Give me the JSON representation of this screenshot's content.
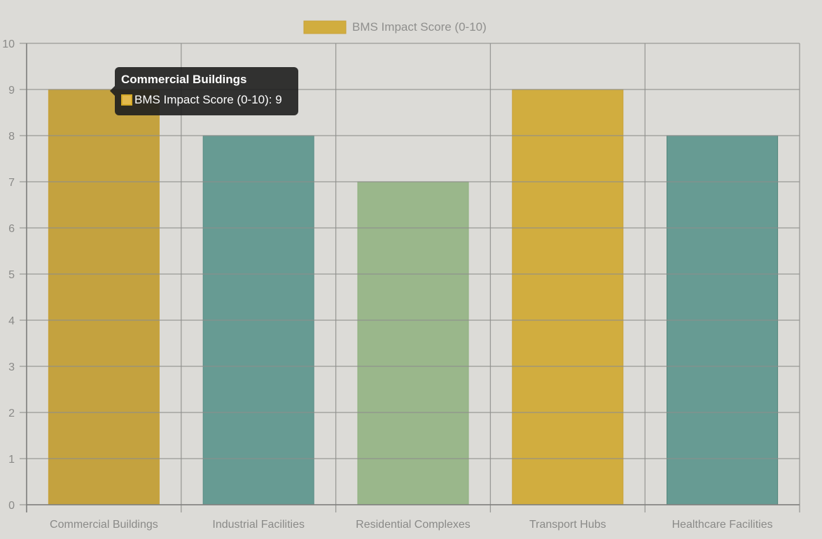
{
  "chart_data": {
    "type": "bar",
    "title": "",
    "xlabel": "",
    "ylabel": "",
    "categories": [
      "Commercial Buildings",
      "Industrial Facilities",
      "Residential Complexes",
      "Transport Hubs",
      "Healthcare Facilities"
    ],
    "series": [
      {
        "name": "BMS Impact Score (0-10)",
        "values": [
          9,
          8,
          7,
          9,
          8
        ],
        "colors": [
          "#c4a23f",
          "#679b93",
          "#9ab78b",
          "#d1ad3f",
          "#679b93"
        ],
        "border_colors": [
          "#c9a23a",
          "#5a8d85",
          "#8fb07e",
          "#c9a23a",
          "#4f8479"
        ]
      }
    ],
    "ylim": [
      0,
      10
    ],
    "yticks": [
      0,
      1,
      2,
      3,
      4,
      5,
      6,
      7,
      8,
      9,
      10
    ],
    "grid": true,
    "legend": {
      "position": "top-center",
      "label": "BMS Impact Score (0-10)",
      "swatch_color": "#d1ad3f",
      "swatch_border": "#c9a23a"
    }
  },
  "tooltip": {
    "title": "Commercial Buildings",
    "label": "BMS Impact Score (0-10): 9"
  }
}
